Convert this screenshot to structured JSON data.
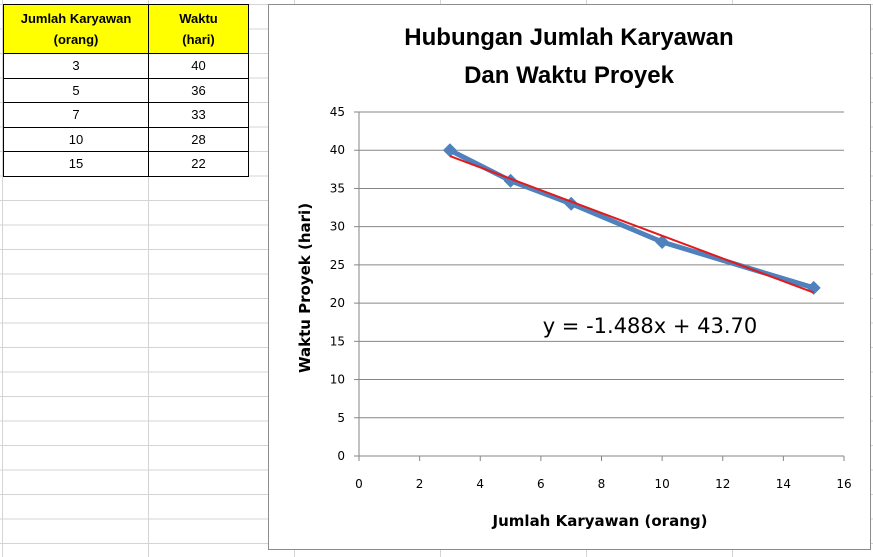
{
  "table": {
    "headers": [
      [
        "Jumlah Karyawan",
        "(orang)"
      ],
      [
        "Waktu",
        "(hari)"
      ]
    ],
    "rows": [
      [
        "3",
        "40"
      ],
      [
        "5",
        "36"
      ],
      [
        "7",
        "33"
      ],
      [
        "10",
        "28"
      ],
      [
        "15",
        "22"
      ]
    ]
  },
  "chart_data": {
    "type": "scatter",
    "title": [
      "Hubungan Jumlah Karyawan",
      "Dan Waktu Proyek"
    ],
    "xlabel": "Jumlah Karyawan  (orang)",
    "ylabel": "Waktu Proyek (hari)",
    "xlim": [
      0,
      16
    ],
    "ylim": [
      0,
      45
    ],
    "x_ticks": [
      0,
      2,
      4,
      6,
      8,
      10,
      12,
      14,
      16
    ],
    "y_ticks": [
      0,
      5,
      10,
      15,
      20,
      25,
      30,
      35,
      40,
      45
    ],
    "grid": "horizontal",
    "series": [
      {
        "x": [
          3,
          5,
          7,
          10,
          15
        ],
        "y": [
          40,
          36,
          33,
          28,
          22
        ],
        "color": "#4f81bd",
        "marker": "diamond"
      }
    ],
    "trendline": {
      "slope": -1.488,
      "intercept": 43.7,
      "color": "#e31a1c",
      "x_range": [
        3,
        15
      ]
    },
    "equation": "y = -1.488x + 43.70"
  }
}
